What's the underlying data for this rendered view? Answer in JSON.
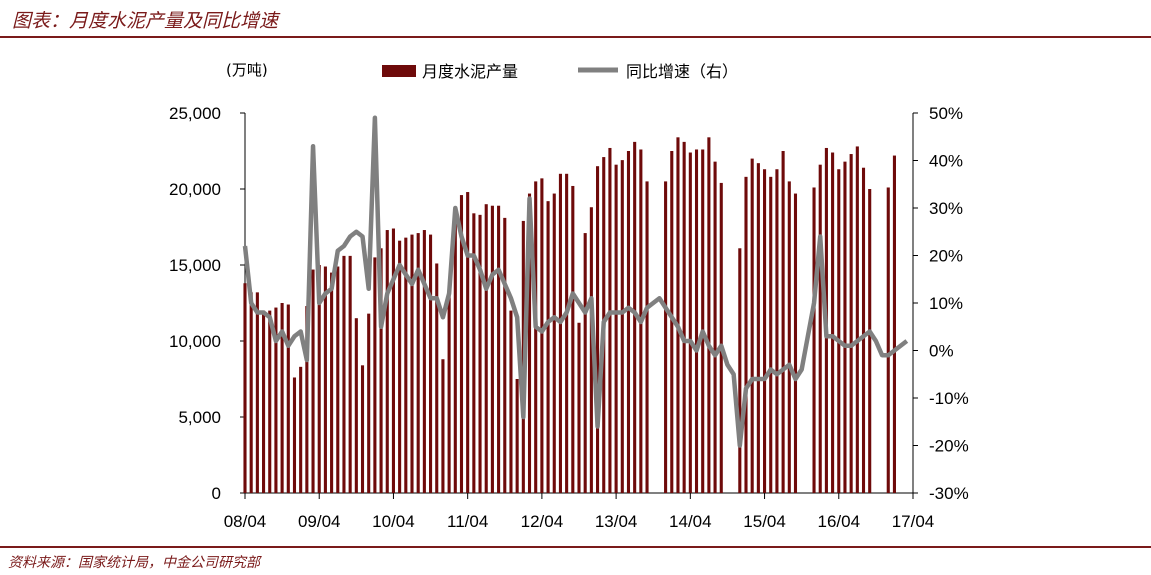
{
  "header": {
    "title": "图表：月度水泥产量及同比增速"
  },
  "footer": {
    "source": "资料来源：国家统计局，中金公司研究部"
  },
  "colors": {
    "bar": "#6e0a0a",
    "line": "#808080",
    "accent": "#7a1a1a"
  },
  "chart_data": {
    "type": "bar",
    "left_unit": "(万吨)",
    "yleft": {
      "range": [
        0,
        25000
      ],
      "ticks": [
        "0",
        "5,000",
        "10,000",
        "15,000",
        "20,000",
        "25,000"
      ]
    },
    "yright": {
      "range": [
        -30,
        50
      ],
      "ticks": [
        "-30%",
        "-20%",
        "-10%",
        "0%",
        "10%",
        "20%",
        "30%",
        "40%",
        "50%"
      ]
    },
    "x_ticks": [
      "08/04",
      "09/04",
      "10/04",
      "11/04",
      "12/04",
      "13/04",
      "14/04",
      "15/04",
      "16/04",
      "17/04"
    ],
    "series": [
      {
        "name": "月度水泥产量",
        "kind": "bar",
        "axis": "left",
        "start": "2008-04",
        "values": [
          13800,
          13200,
          13200,
          12000,
          12000,
          12200,
          12500,
          12400,
          7600,
          8300,
          12300,
          14700,
          15000,
          14900,
          14500,
          14900,
          15600,
          15600,
          11500,
          8400,
          11800,
          15500,
          16100,
          17300,
          17400,
          16600,
          16800,
          17000,
          17100,
          17300,
          17000,
          15100,
          8800,
          13700,
          18300,
          19600,
          19800,
          18400,
          18300,
          19000,
          18900,
          18900,
          18100,
          12000,
          7500,
          17900,
          19700,
          20500,
          20700,
          19200,
          19700,
          21000,
          21000,
          20200,
          11200,
          17100,
          18800,
          21500,
          22100,
          22700,
          21600,
          21900,
          22500,
          23100,
          22600,
          20500,
          null,
          null,
          20500,
          22500,
          23400,
          23100,
          22400,
          22600,
          22600,
          23400,
          21800,
          20400,
          null,
          null,
          16100,
          20800,
          22000,
          21700,
          21300,
          20800,
          21300,
          22500,
          20500,
          19700,
          null,
          null,
          20100,
          21600,
          22700,
          22400,
          21300,
          21800,
          22300,
          22800,
          21400,
          20000,
          null,
          null,
          20100,
          22200
        ]
      },
      {
        "name": "同比增速（右）",
        "kind": "line",
        "axis": "right",
        "start": "2008-04",
        "values": [
          22,
          10,
          8,
          8,
          7,
          2,
          4,
          1,
          3,
          4,
          -2,
          43,
          10,
          12,
          13,
          21,
          22,
          24,
          25,
          24,
          13,
          49,
          5,
          12,
          15,
          18,
          16,
          14,
          17,
          14,
          11,
          11,
          7,
          12,
          30,
          24,
          20,
          20,
          17,
          13,
          16,
          17,
          14,
          11,
          7,
          -14,
          32,
          5,
          4,
          6,
          7,
          6,
          8,
          12,
          10,
          8,
          11,
          -16,
          6,
          8,
          8,
          8,
          9,
          8,
          6,
          9,
          10,
          11,
          9,
          7,
          5,
          2,
          2,
          0,
          4,
          1,
          -1,
          1,
          -3,
          -5,
          -20,
          -8,
          -6,
          -6,
          -6,
          -4,
          -5,
          -4,
          -3,
          -6,
          -4,
          3,
          10,
          24,
          3,
          3,
          2,
          1,
          1,
          2,
          3,
          4,
          2,
          -1,
          -1,
          0,
          1,
          2
        ]
      }
    ]
  }
}
